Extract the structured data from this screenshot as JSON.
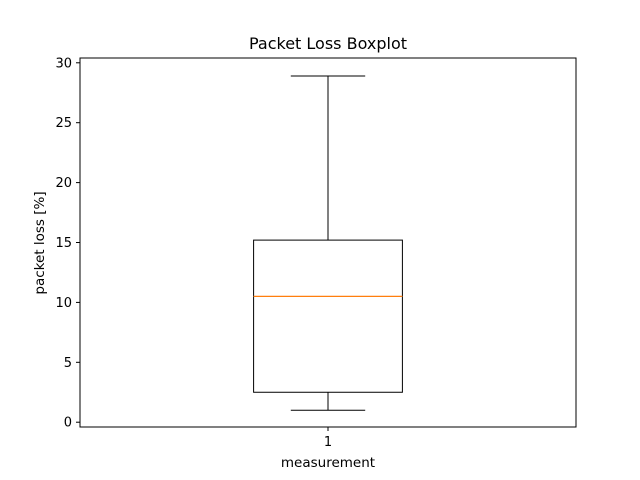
{
  "chart_data": {
    "type": "boxplot",
    "title": "Packet Loss Boxplot",
    "xlabel": "measurement",
    "ylabel": "packet loss [%]",
    "ylim": [
      -0.4,
      30.4
    ],
    "yticks": [
      0,
      5,
      10,
      15,
      20,
      25,
      30
    ],
    "categories": [
      "1"
    ],
    "boxes": [
      {
        "label": "1",
        "whisker_low": 1.0,
        "q1": 2.5,
        "median": 10.5,
        "q3": 15.2,
        "whisker_high": 28.9
      }
    ],
    "grid": false,
    "colors": {
      "box": "#000000",
      "median": "#ff7f0e",
      "frame": "#000000",
      "background": "#ffffff"
    }
  }
}
